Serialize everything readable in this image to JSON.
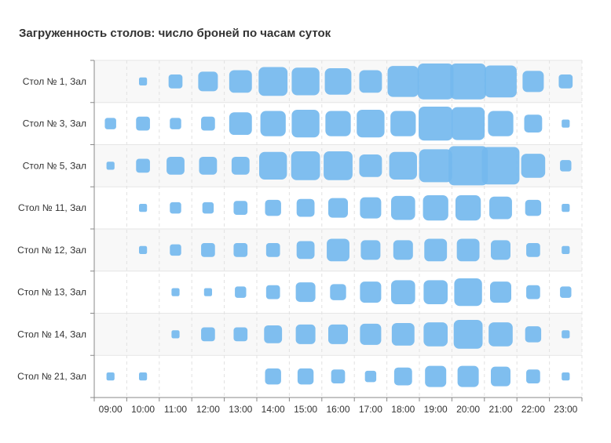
{
  "chart_data": {
    "type": "heatmap",
    "title": "Загруженность столов: число броней по часам суток",
    "xlabel": "",
    "ylabel": "",
    "categories": [
      "09:00",
      "10:00",
      "11:00",
      "12:00",
      "13:00",
      "14:00",
      "15:00",
      "16:00",
      "17:00",
      "18:00",
      "19:00",
      "20:00",
      "21:00",
      "22:00",
      "23:00"
    ],
    "rows": [
      "Стол № 1, Зал",
      "Стол № 3, Зал",
      "Стол № 5, Зал",
      "Стол № 11, Зал",
      "Стол № 12, Зал",
      "Стол № 13, Зал",
      "Стол № 14, Зал",
      "Стол № 21, Зал"
    ],
    "values": [
      [
        0,
        1,
        3,
        6,
        8,
        13,
        12,
        11,
        8,
        15,
        20,
        20,
        16,
        7,
        3
      ],
      [
        2,
        3,
        2,
        3,
        8,
        10,
        12,
        10,
        12,
        10,
        18,
        17,
        10,
        5,
        1
      ],
      [
        1,
        3,
        5,
        5,
        5,
        12,
        13,
        13,
        8,
        12,
        17,
        24,
        22,
        9,
        2
      ],
      [
        0,
        1,
        2,
        2,
        3,
        4,
        5,
        6,
        7,
        9,
        10,
        10,
        8,
        4,
        1
      ],
      [
        0,
        1,
        2,
        3,
        3,
        3,
        5,
        8,
        6,
        6,
        8,
        8,
        6,
        3,
        1
      ],
      [
        0,
        0,
        1,
        1,
        2,
        3,
        6,
        4,
        7,
        9,
        9,
        12,
        7,
        3,
        2
      ],
      [
        0,
        0,
        1,
        3,
        3,
        5,
        6,
        6,
        7,
        8,
        9,
        13,
        9,
        4,
        1
      ],
      [
        1,
        1,
        0,
        0,
        0,
        4,
        4,
        3,
        2,
        5,
        7,
        7,
        6,
        3,
        1
      ]
    ],
    "grid": true,
    "legend": "none",
    "color": "#74b9ee"
  }
}
